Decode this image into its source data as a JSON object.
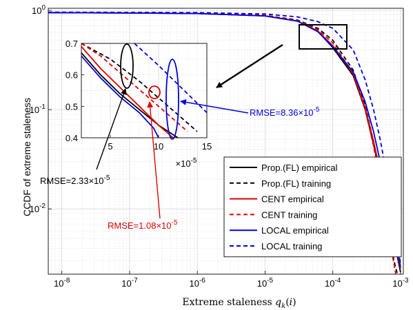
{
  "chart_data": {
    "type": "line",
    "title": "",
    "xlabel": "Extreme staleness q_k(i)",
    "ylabel": "CCDF of extreme staleness",
    "xscale": "log",
    "yscale": "log",
    "xlim": [
      6.3e-09,
      0.0011
    ],
    "ylim": [
      0.0022,
      1.05
    ],
    "grid": true,
    "legend_position": "bottom-right",
    "x_ticks": [
      {
        "base": "10",
        "exp": "-8"
      },
      {
        "base": "10",
        "exp": "-7"
      },
      {
        "base": "10",
        "exp": "-6"
      },
      {
        "base": "10",
        "exp": "-5"
      },
      {
        "base": "10",
        "exp": "-4"
      },
      {
        "base": "10",
        "exp": "-3"
      }
    ],
    "y_ticks": [
      {
        "value": 1,
        "base": "10",
        "exp": "0"
      },
      {
        "value": 0.1,
        "base": "10",
        "exp": "-1"
      },
      {
        "value": 0.01,
        "base": "10",
        "exp": "-2"
      }
    ],
    "series": [
      {
        "name": "Prop.(FL) empirical",
        "color": "#000000",
        "dash": "solid",
        "x": [
          6.3e-09,
          1e-07,
          1e-06,
          1e-05,
          3e-05,
          6e-05,
          0.0001,
          0.0002,
          0.0003,
          0.0004,
          0.0005,
          0.0006,
          0.0007,
          0.0008,
          0.0009,
          0.001
        ],
        "y": [
          0.95,
          0.94,
          0.93,
          0.88,
          0.78,
          0.62,
          0.42,
          0.22,
          0.1,
          0.045,
          0.022,
          0.013,
          0.008,
          0.005,
          0.0033,
          0.0023
        ]
      },
      {
        "name": "Prop.(FL) training",
        "color": "#000000",
        "dash": "dashed",
        "x": [
          6.3e-09,
          1e-07,
          1e-06,
          1e-05,
          3e-05,
          6e-05,
          0.0001,
          0.0002,
          0.0003,
          0.0004,
          0.0005,
          0.0006,
          0.0007,
          0.0008,
          0.0009
        ],
        "y": [
          0.95,
          0.945,
          0.935,
          0.89,
          0.8,
          0.66,
          0.5,
          0.25,
          0.11,
          0.048,
          0.022,
          0.01,
          0.005,
          0.003,
          0.0022
        ]
      },
      {
        "name": "CENT empirical",
        "color": "#e00000",
        "dash": "solid",
        "x": [
          6.3e-09,
          1e-07,
          1e-06,
          1e-05,
          3e-05,
          6e-05,
          0.0001,
          0.0002,
          0.0003,
          0.0004,
          0.0005,
          0.0006,
          0.0007,
          0.0008,
          0.0009,
          0.001
        ],
        "y": [
          0.95,
          0.94,
          0.93,
          0.88,
          0.78,
          0.62,
          0.44,
          0.23,
          0.105,
          0.048,
          0.024,
          0.014,
          0.0085,
          0.0055,
          0.0036,
          0.0025
        ]
      },
      {
        "name": "CENT training",
        "color": "#e00000",
        "dash": "dashed",
        "x": [
          6.3e-09,
          1e-07,
          1e-06,
          1e-05,
          3e-05,
          6e-05,
          0.0001,
          0.0002,
          0.0003,
          0.0004,
          0.0005,
          0.0006,
          0.0007,
          0.0008,
          0.00085
        ],
        "y": [
          0.95,
          0.944,
          0.934,
          0.89,
          0.79,
          0.64,
          0.47,
          0.23,
          0.1,
          0.043,
          0.019,
          0.009,
          0.0045,
          0.0028,
          0.0022
        ]
      },
      {
        "name": "LOCAL empirical",
        "color": "#0000e0",
        "dash": "solid",
        "x": [
          6.3e-09,
          1e-07,
          1e-06,
          1e-05,
          3e-05,
          6e-05,
          0.0001,
          0.0002,
          0.0003,
          0.0004,
          0.0005,
          0.0006,
          0.0007,
          0.0008,
          0.0009,
          0.001
        ],
        "y": [
          0.95,
          0.94,
          0.93,
          0.88,
          0.78,
          0.61,
          0.43,
          0.24,
          0.12,
          0.06,
          0.03,
          0.017,
          0.01,
          0.006,
          0.004,
          0.0026
        ]
      },
      {
        "name": "LOCAL training",
        "color": "#0000e0",
        "dash": "dashed",
        "x": [
          6.3e-09,
          1e-07,
          1e-06,
          1e-05,
          3e-05,
          6e-05,
          0.0001,
          0.0002,
          0.0003,
          0.0004,
          0.0005,
          0.0006,
          0.0007,
          0.0008,
          0.0009,
          0.001
        ],
        "y": [
          0.96,
          0.955,
          0.95,
          0.92,
          0.86,
          0.77,
          0.66,
          0.4,
          0.2,
          0.1,
          0.05,
          0.026,
          0.014,
          0.008,
          0.0045,
          0.0028
        ]
      }
    ],
    "inset": {
      "xlim": [
        2,
        15
      ],
      "ylim": [
        0.4,
        0.7
      ],
      "x_ticks": [
        5,
        10,
        15
      ],
      "y_ticks": [
        0.4,
        0.5,
        0.6,
        0.7
      ],
      "x_multiplier": {
        "base": "×10",
        "exp": "-5"
      },
      "series": [
        {
          "name": "Prop.(FL) empirical",
          "x": [
            2,
            4,
            6,
            8,
            10,
            12
          ],
          "y": [
            0.67,
            0.6,
            0.54,
            0.49,
            0.44,
            0.4
          ]
        },
        {
          "name": "Prop.(FL) training",
          "x": [
            2,
            5,
            8,
            11,
            14
          ],
          "y": [
            0.7,
            0.65,
            0.58,
            0.5,
            0.42
          ]
        },
        {
          "name": "CENT empirical",
          "x": [
            2,
            4,
            6,
            8,
            10,
            11.5
          ],
          "y": [
            0.69,
            0.62,
            0.56,
            0.5,
            0.44,
            0.4
          ]
        },
        {
          "name": "CENT training",
          "x": [
            2,
            4,
            7,
            10,
            13
          ],
          "y": [
            0.7,
            0.66,
            0.58,
            0.5,
            0.42
          ]
        },
        {
          "name": "LOCAL empirical",
          "x": [
            2,
            4,
            6,
            8,
            9.5,
            10
          ],
          "y": [
            0.66,
            0.59,
            0.53,
            0.48,
            0.43,
            0.4
          ]
        },
        {
          "name": "LOCAL training",
          "x": [
            7.5,
            10,
            12,
            14,
            15
          ],
          "y": [
            0.7,
            0.63,
            0.57,
            0.51,
            0.48
          ]
        }
      ]
    },
    "annotations": [
      {
        "text": "RMSE=8.36×10",
        "exp": "-5",
        "color": "#0000e0"
      },
      {
        "text": "RMSE=2.33×10",
        "exp": "-5",
        "color": "#000000"
      },
      {
        "text": "RMSE=1.08×10",
        "exp": "-5",
        "color": "#e00000"
      }
    ]
  }
}
